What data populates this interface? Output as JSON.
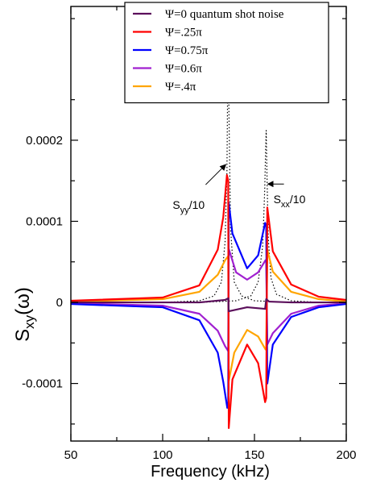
{
  "chart_data": {
    "type": "line",
    "xlabel": "Frequency (kHz)",
    "ylabel": "S",
    "ylabel_sub": "xy",
    "ylabel_tail": "(ω)",
    "xlim": [
      50,
      200
    ],
    "ylim": [
      -0.000171,
      0.000365
    ],
    "xticks": [
      50,
      100,
      150,
      200
    ],
    "xtick_labels": [
      "50",
      "100",
      "150",
      "200"
    ],
    "yticks": [
      -0.0001,
      0,
      0.0001,
      0.0002
    ],
    "ytick_labels": [
      "-0.0001",
      "0",
      "0.0001",
      "0.0002"
    ],
    "grid": false,
    "legend_position": "top-center",
    "resonances_khz": [
      135.7,
      156.4
    ],
    "series": [
      {
        "name": "Ψ=0 quantum shot noise",
        "color": "#5b0f5b",
        "points": [
          [
            50,
            0.0
          ],
          [
            120,
            0.0
          ],
          [
            134,
            3e-06
          ],
          [
            135.7,
            5e-06
          ],
          [
            136,
            -1.1e-05
          ],
          [
            146,
            -6e-06
          ],
          [
            155.8,
            -8e-06
          ],
          [
            156.4,
            4e-06
          ],
          [
            158,
            1e-06
          ],
          [
            170,
            0.0
          ],
          [
            200,
            0.0
          ]
        ]
      },
      {
        "name": "Ψ=.25π",
        "color": "#ff0000",
        "points": [
          [
            50,
            2e-06
          ],
          [
            100,
            6e-06
          ],
          [
            120,
            2.1e-05
          ],
          [
            130,
            6.5e-05
          ],
          [
            133,
            0.000105
          ],
          [
            135,
            0.000157
          ],
          [
            135.7,
            0.00015
          ],
          [
            136,
            -0.000155
          ],
          [
            138,
            -9.5e-05
          ],
          [
            146,
            -5.2e-05
          ],
          [
            152,
            -7.5e-05
          ],
          [
            155.8,
            -0.000123
          ],
          [
            156.4,
            -0.000118
          ],
          [
            157,
            0.000117
          ],
          [
            160,
            6.3e-05
          ],
          [
            170,
            2.2e-05
          ],
          [
            185,
            7e-06
          ],
          [
            200,
            3e-06
          ]
        ]
      },
      {
        "name": "Ψ=0.75π",
        "color": "#0000ff",
        "points": [
          [
            50,
            -2e-06
          ],
          [
            100,
            -6e-06
          ],
          [
            120,
            -2.2e-05
          ],
          [
            130,
            -6.2e-05
          ],
          [
            133,
            -9.8e-05
          ],
          [
            135.2,
            -0.00013
          ],
          [
            135.7,
            -0.000128
          ],
          [
            136,
            0.000123
          ],
          [
            138,
            8.5e-05
          ],
          [
            146,
            4.2e-05
          ],
          [
            152,
            5.8e-05
          ],
          [
            155.8,
            9.8e-05
          ],
          [
            156.4,
            9.5e-05
          ],
          [
            157,
            -0.0001
          ],
          [
            160,
            -5.2e-05
          ],
          [
            170,
            -1.8e-05
          ],
          [
            185,
            -6e-06
          ],
          [
            200,
            -2e-06
          ]
        ]
      },
      {
        "name": "Ψ=0.6π",
        "color": "#a020d0",
        "points": [
          [
            50,
            -1e-06
          ],
          [
            100,
            -4e-06
          ],
          [
            120,
            -1.4e-05
          ],
          [
            130,
            -3.5e-05
          ],
          [
            134,
            -5.4e-05
          ],
          [
            135.7,
            -6e-05
          ],
          [
            136,
            6.6e-05
          ],
          [
            140,
            3.7e-05
          ],
          [
            146,
            2.8e-05
          ],
          [
            152,
            3.7e-05
          ],
          [
            156,
            5.2e-05
          ],
          [
            156.4,
            5e-05
          ],
          [
            157,
            -5.2e-05
          ],
          [
            160,
            -3.8e-05
          ],
          [
            170,
            -1.4e-05
          ],
          [
            185,
            -4e-06
          ],
          [
            200,
            -1e-06
          ]
        ]
      },
      {
        "name": "Ψ=.4π",
        "color": "#ffa500",
        "points": [
          [
            50,
            1e-06
          ],
          [
            100,
            4e-06
          ],
          [
            120,
            1.3e-05
          ],
          [
            130,
            3.4e-05
          ],
          [
            134,
            5.2e-05
          ],
          [
            135.7,
            5.7e-05
          ],
          [
            136,
            -9.7e-05
          ],
          [
            139,
            -6.2e-05
          ],
          [
            146,
            -3.4e-05
          ],
          [
            152,
            -4.2e-05
          ],
          [
            156,
            -5.8e-05
          ],
          [
            156.4,
            -5.6e-05
          ],
          [
            157,
            6.5e-05
          ],
          [
            160,
            3.8e-05
          ],
          [
            170,
            1.3e-05
          ],
          [
            185,
            4e-06
          ],
          [
            200,
            1e-06
          ]
        ]
      },
      {
        "name": "S_yy/10",
        "color": "#000000",
        "dashed": true,
        "points": [
          [
            50,
            0.0
          ],
          [
            100,
            0.0
          ],
          [
            120,
            2e-06
          ],
          [
            128,
            8e-06
          ],
          [
            132,
            2.5e-05
          ],
          [
            134,
            7.5e-05
          ],
          [
            135,
            0.00016
          ],
          [
            135.5,
            0.00029
          ],
          [
            135.7,
            0.00036
          ],
          [
            136,
            0.00025
          ],
          [
            137,
            9e-05
          ],
          [
            139,
            2.5e-05
          ],
          [
            143,
            8e-06
          ],
          [
            150,
            2e-06
          ],
          [
            170,
            0.0
          ],
          [
            200,
            0.0
          ]
        ]
      },
      {
        "name": "S_xx/10",
        "color": "#000000",
        "dashed": true,
        "points": [
          [
            50,
            0.0
          ],
          [
            120,
            0.0
          ],
          [
            140,
            2e-06
          ],
          [
            148,
            8e-06
          ],
          [
            152,
            2.5e-05
          ],
          [
            154.5,
            7e-05
          ],
          [
            155.6,
            0.00014
          ],
          [
            156.1,
            0.00019
          ],
          [
            156.4,
            0.000212
          ],
          [
            156.8,
            0.00016
          ],
          [
            157.5,
            8e-05
          ],
          [
            159,
            3e-05
          ],
          [
            162,
            1e-05
          ],
          [
            170,
            2e-06
          ],
          [
            185,
            0.0
          ],
          [
            200,
            0.0
          ]
        ]
      }
    ],
    "legend": [
      {
        "label": "Ψ=0 quantum shot noise",
        "color": "#5b0f5b"
      },
      {
        "label": "Ψ=.25π",
        "color": "#ff0000"
      },
      {
        "label": "Ψ=0.75π",
        "color": "#0000ff"
      },
      {
        "label": "Ψ=0.6π",
        "color": "#a020d0"
      },
      {
        "label": "Ψ=.4π",
        "color": "#ffa500"
      }
    ],
    "annotations": [
      {
        "text": "S",
        "sub": "yy",
        "tail": "/10",
        "target_x": 135.7,
        "target_y": 0.000172
      },
      {
        "text": "S",
        "sub": "xx",
        "tail": "/10",
        "target_x": 156.4,
        "target_y": 0.000148
      }
    ]
  }
}
